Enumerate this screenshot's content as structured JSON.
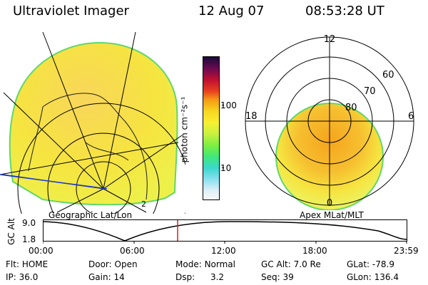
{
  "header": {
    "instrument": "Ultraviolet Imager",
    "date": "12 Aug 07",
    "time": "08:53:28 UT"
  },
  "colorbar": {
    "unit_label": "photon cm⁻²s⁻¹",
    "ticks": [
      "100",
      "10"
    ],
    "scale": "log"
  },
  "left_map": {
    "label": "Geographic Lat/Lon",
    "corner_text": "2"
  },
  "right_map": {
    "label": "Apex MLat/MLT",
    "mlt_labels": {
      "top": "12",
      "left": "18",
      "right": "6",
      "bottom": "0"
    },
    "lat_labels": [
      "60",
      "70",
      "80"
    ]
  },
  "altitude_plot": {
    "ylabel": "GC Alt",
    "yticks": [
      "9.0",
      "1.8"
    ],
    "xticks": [
      "00:00",
      "06:00",
      "12:00",
      "18:00",
      "23:59"
    ],
    "marker_time": "08:53"
  },
  "info": {
    "row1": [
      {
        "label": "Flt:",
        "value": "HOME"
      },
      {
        "label": "Door:",
        "value": "Open"
      },
      {
        "label": "Mode:",
        "value": "Normal"
      },
      {
        "label": "GC Alt:",
        "value": "7.0 Re"
      },
      {
        "label": "GLat:",
        "value": "-78.9"
      }
    ],
    "row2": [
      {
        "label": "IP:",
        "value": "36.0"
      },
      {
        "label": "Gain:",
        "value": "14"
      },
      {
        "label": "Dsp:",
        "value": "3.2"
      },
      {
        "label": "Seq:",
        "value": "39"
      },
      {
        "label": "GLon:",
        "value": "136.4"
      }
    ]
  },
  "colors": {
    "aurora_fill": "#f7e32a",
    "aurora_edge": "#5fd86a",
    "aurora_hot": "#f5a41c",
    "marker": "#d32020"
  }
}
